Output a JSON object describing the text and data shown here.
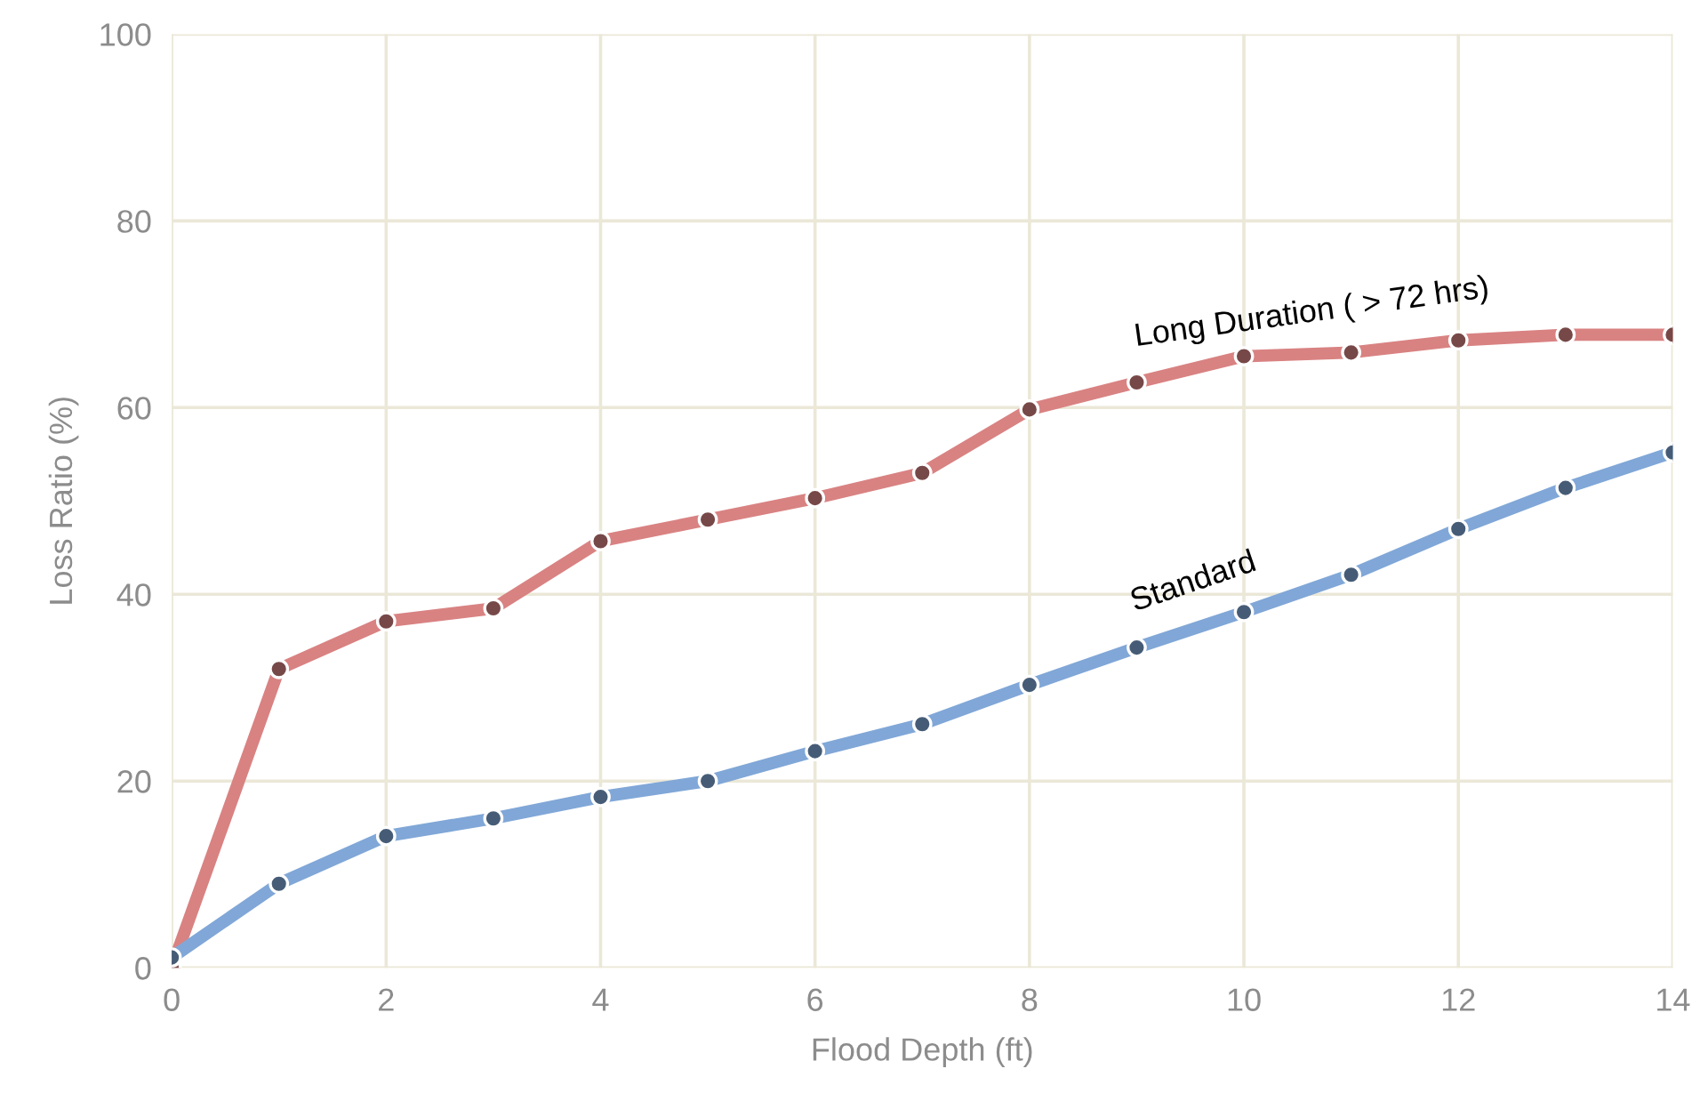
{
  "chart_data": {
    "type": "line",
    "xlabel": "Flood Depth (ft)",
    "ylabel": "Loss Ratio (%)",
    "x": [
      0,
      1,
      2,
      3,
      4,
      5,
      6,
      7,
      8,
      9,
      10,
      11,
      12,
      13,
      14
    ],
    "series": [
      {
        "name": "Long Duration ( > 72 hrs)",
        "color": "#d98282",
        "values": [
          0,
          32,
          37.1,
          38.5,
          45.7,
          48,
          50.3,
          53,
          59.8,
          62.7,
          65.5,
          65.9,
          67.2,
          67.8,
          67.8
        ]
      },
      {
        "name": "Standard",
        "color": "#80a7d7",
        "values": [
          1.1,
          9,
          14.1,
          16,
          18.3,
          20,
          23.2,
          26.1,
          30.3,
          34.3,
          38.1,
          42.1,
          47,
          51.4,
          55.2
        ]
      }
    ],
    "xlim": [
      0,
      14
    ],
    "ylim": [
      0,
      100
    ],
    "xticks": [
      0,
      2,
      4,
      6,
      8,
      10,
      12,
      14
    ],
    "yticks": [
      0,
      20,
      40,
      60,
      80,
      100
    ],
    "grid": true,
    "legend": false,
    "marker": "circle",
    "line_style": "solid"
  }
}
